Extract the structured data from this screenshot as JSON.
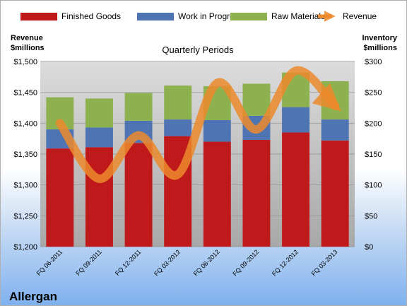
{
  "chart_data": {
    "type": "bar",
    "company": "Allergan",
    "title": "Quarterly Periods",
    "left_axis_label": [
      "Revenue",
      "$millions"
    ],
    "right_axis_label": [
      "Inventory",
      "$millions"
    ],
    "categories": [
      "FQ 06-2011",
      "FQ 09-2011",
      "FQ 12-2011",
      "FQ 03-2012",
      "FQ 06-2012",
      "FQ 09-2012",
      "FQ 12-2012",
      "FQ 03-2013"
    ],
    "series": [
      {
        "name": "Finished Goods",
        "axis": "right",
        "stacked": true,
        "color": "#c0191b",
        "values": [
          159,
          161,
          168,
          179,
          170,
          173,
          185,
          172
        ]
      },
      {
        "name": "Work in Progress",
        "axis": "right",
        "stacked": true,
        "color": "#4f74b4",
        "values": [
          31,
          32,
          36,
          27,
          35,
          39,
          41,
          34
        ]
      },
      {
        "name": "Raw Materials",
        "axis": "right",
        "stacked": true,
        "color": "#8db14e",
        "values": [
          52,
          47,
          45,
          55,
          55,
          52,
          56,
          62
        ]
      },
      {
        "name": "Revenue",
        "axis": "left",
        "type": "line",
        "color": "#ec8a2d",
        "values": [
          1400,
          1310,
          1380,
          1317,
          1465,
          1390,
          1485,
          1428
        ]
      }
    ],
    "left_ylim": [
      1200,
      1500
    ],
    "left_ticks": [
      "$1,200",
      "$1,250",
      "$1,300",
      "$1,350",
      "$1,400",
      "$1,450",
      "$1,500"
    ],
    "right_ylim": [
      0,
      300
    ],
    "right_ticks": [
      "$0",
      "$50",
      "$100",
      "$150",
      "$200",
      "$250",
      "$300"
    ],
    "legend_position": "top",
    "grid": true
  }
}
